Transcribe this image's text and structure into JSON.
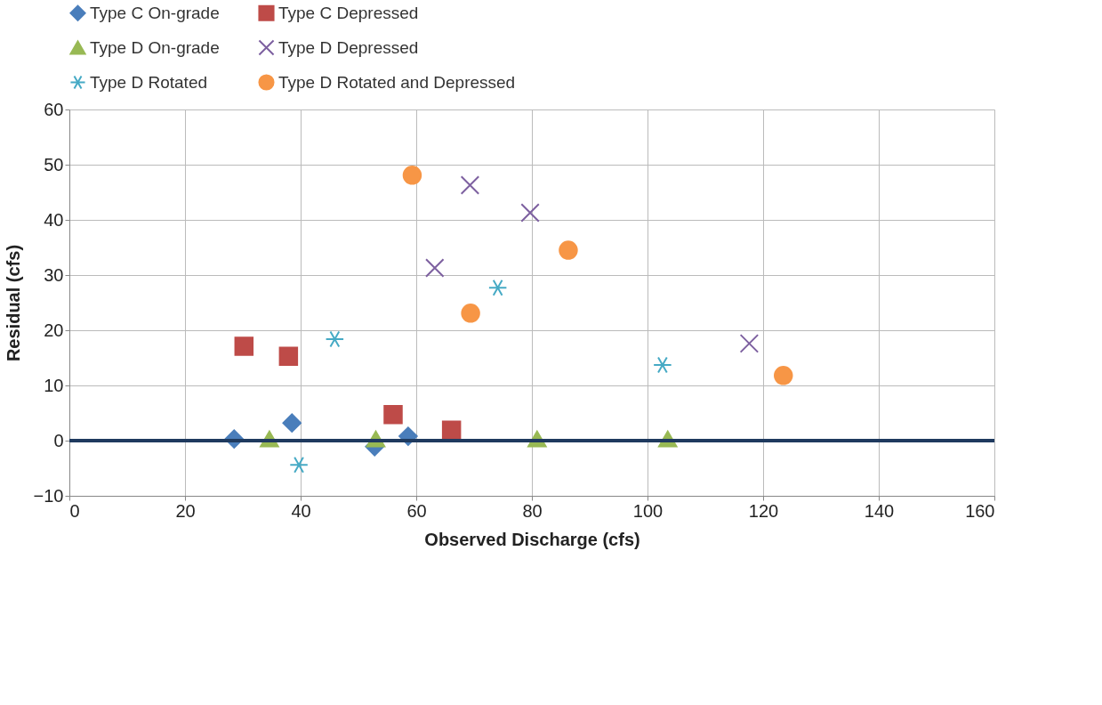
{
  "chart_data": {
    "type": "scatter",
    "xlabel": "Observed Discharge (cfs)",
    "ylabel": "Residual (cfs)",
    "xlim": [
      0,
      160
    ],
    "xticks": [
      0,
      20,
      40,
      60,
      80,
      100,
      120,
      140,
      160
    ],
    "ylim": [
      -10,
      60
    ],
    "yticks": [
      -10,
      0,
      10,
      20,
      30,
      40,
      50,
      60
    ],
    "grid": true,
    "legend": "top",
    "ref_lines": [
      {
        "axis": "y",
        "value": 0,
        "color": "#1f3a5f"
      }
    ],
    "series": [
      {
        "name": "Type C On-grade",
        "color": "#4a7ebb",
        "marker": "diamond",
        "x": [
          28.5,
          38.5,
          52.8,
          58.6
        ],
        "values": [
          0.3,
          3.2,
          -1.1,
          0.8
        ]
      },
      {
        "name": "Type C Depressed",
        "color": "#be4b48",
        "marker": "square",
        "x": [
          30.2,
          37.9,
          56.0,
          66.1
        ],
        "values": [
          17.1,
          15.3,
          4.7,
          1.9
        ]
      },
      {
        "name": "Type D On-grade",
        "color": "#98b954",
        "marker": "triangle",
        "x": [
          34.6,
          53.0,
          80.9,
          103.5
        ],
        "values": [
          0.3,
          0.3,
          0.3,
          0.3
        ]
      },
      {
        "name": "Type D Depressed",
        "color": "#7d60a0",
        "marker": "cross",
        "x": [
          69.3,
          79.7,
          63.2,
          117.6
        ],
        "values": [
          46.3,
          41.3,
          31.3,
          17.6
        ]
      },
      {
        "name": "Type D Rotated",
        "color": "#46aac5",
        "x": [
          45.9,
          39.7,
          74.1,
          102.6
        ],
        "values": [
          18.4,
          -4.4,
          27.7,
          13.7
        ]
      },
      {
        "name": "Type D Rotated and Depressed",
        "color": "#f79646",
        "marker": "circle",
        "x": [
          59.3,
          86.3,
          69.4,
          123.5
        ],
        "values": [
          48.1,
          34.5,
          23.1,
          11.8
        ]
      }
    ]
  }
}
